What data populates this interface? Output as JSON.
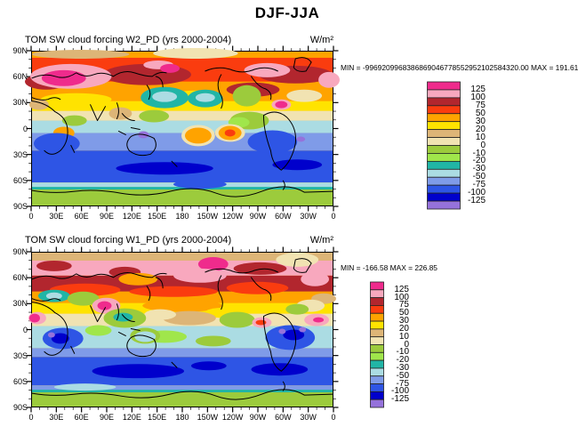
{
  "title": "DJF-JJA",
  "chart_data": [
    {
      "type": "heatmap",
      "panel": "top",
      "title": "TOM SW cloud forcing  W2_PD (yrs 2000-2004)",
      "units": "W/m²",
      "stats": "MIN = -9969209968386869046778552952102584320.00 MAX = 191.61",
      "max": 191.61,
      "levels": [
        125,
        100,
        75,
        50,
        30,
        20,
        10,
        0,
        -10,
        -20,
        -30,
        -50,
        -75,
        -100,
        -125
      ],
      "level_labels": [
        "125",
        "100",
        "75",
        "50",
        "30",
        "20",
        "10",
        "0",
        "-10",
        "-20",
        "-30",
        "-50",
        "-75",
        "-100",
        "-125"
      ],
      "palette": [
        "#EF2B8C",
        "#F8A8BE",
        "#B2262E",
        "#FA3C0F",
        "#FFA300",
        "#FFE300",
        "#DDB577",
        "#F1E3B2",
        "#9CCB3C",
        "#A0E64B",
        "#21B5A6",
        "#ABDCE3",
        "#7F9BE8",
        "#2E55E5",
        "#0000CC",
        "#9572DB"
      ],
      "lat_ticks": [
        "90N",
        "60N",
        "30N",
        "0",
        "30S",
        "60S",
        "90S"
      ],
      "lon_ticks": [
        "0",
        "30E",
        "60E",
        "90E",
        "120E",
        "150E",
        "180",
        "150W",
        "120W",
        "90W",
        "60W",
        "30W",
        "0"
      ],
      "lon_range_deg": [
        0,
        360
      ],
      "lat_range_deg": [
        -90,
        90
      ],
      "description": "Global filled-contour map, DJF minus JJA TOA SW cloud forcing for run W2_PD: strong positive (orange/red/pink/magenta) values 20N-80N, teal/cyan negatives in tropical Pacific, strong negative blue belt 20S-60S, green (0 to -20) over Antarctica."
    },
    {
      "type": "heatmap",
      "panel": "bottom",
      "title": "TOM SW cloud forcing  W1_PD (yrs 2000-2004)",
      "units": "W/m²",
      "stats": "MIN = -166.58 MAX = 226.85",
      "min": -166.58,
      "max": 226.85,
      "levels": [
        125,
        100,
        75,
        50,
        30,
        20,
        10,
        0,
        -10,
        -20,
        -30,
        -50,
        -75,
        -100,
        -125
      ],
      "level_labels": [
        "125",
        "100",
        "75",
        "50",
        "30",
        "20",
        "10",
        "0",
        "-10",
        "-20",
        "-30",
        "-50",
        "-75",
        "-100",
        "-125"
      ],
      "palette": [
        "#EF2B8C",
        "#F8A8BE",
        "#B2262E",
        "#FA3C0F",
        "#FFA300",
        "#FFE300",
        "#DDB577",
        "#F1E3B2",
        "#9CCB3C",
        "#A0E64B",
        "#21B5A6",
        "#ABDCE3",
        "#7F9BE8",
        "#2E55E5",
        "#0000CC",
        "#9572DB"
      ],
      "lat_ticks": [
        "90N",
        "60N",
        "30N",
        "0",
        "30S",
        "60S",
        "90S"
      ],
      "lon_ticks": [
        "0",
        "30E",
        "60E",
        "90E",
        "120E",
        "150E",
        "180",
        "150W",
        "120W",
        "90W",
        "60W",
        "30W",
        "0"
      ],
      "lon_range_deg": [
        0,
        360
      ],
      "lat_range_deg": [
        -90,
        90
      ],
      "description": "Global filled-contour map, DJF minus JJA TOA SW cloud forcing for run W1_PD: tan Arctic band, pink/dark-red belt 40N-70N, magenta over India, green/teal maritime continent, royal blue belt 20S-60S with navy cores, green over Antarctica."
    }
  ]
}
